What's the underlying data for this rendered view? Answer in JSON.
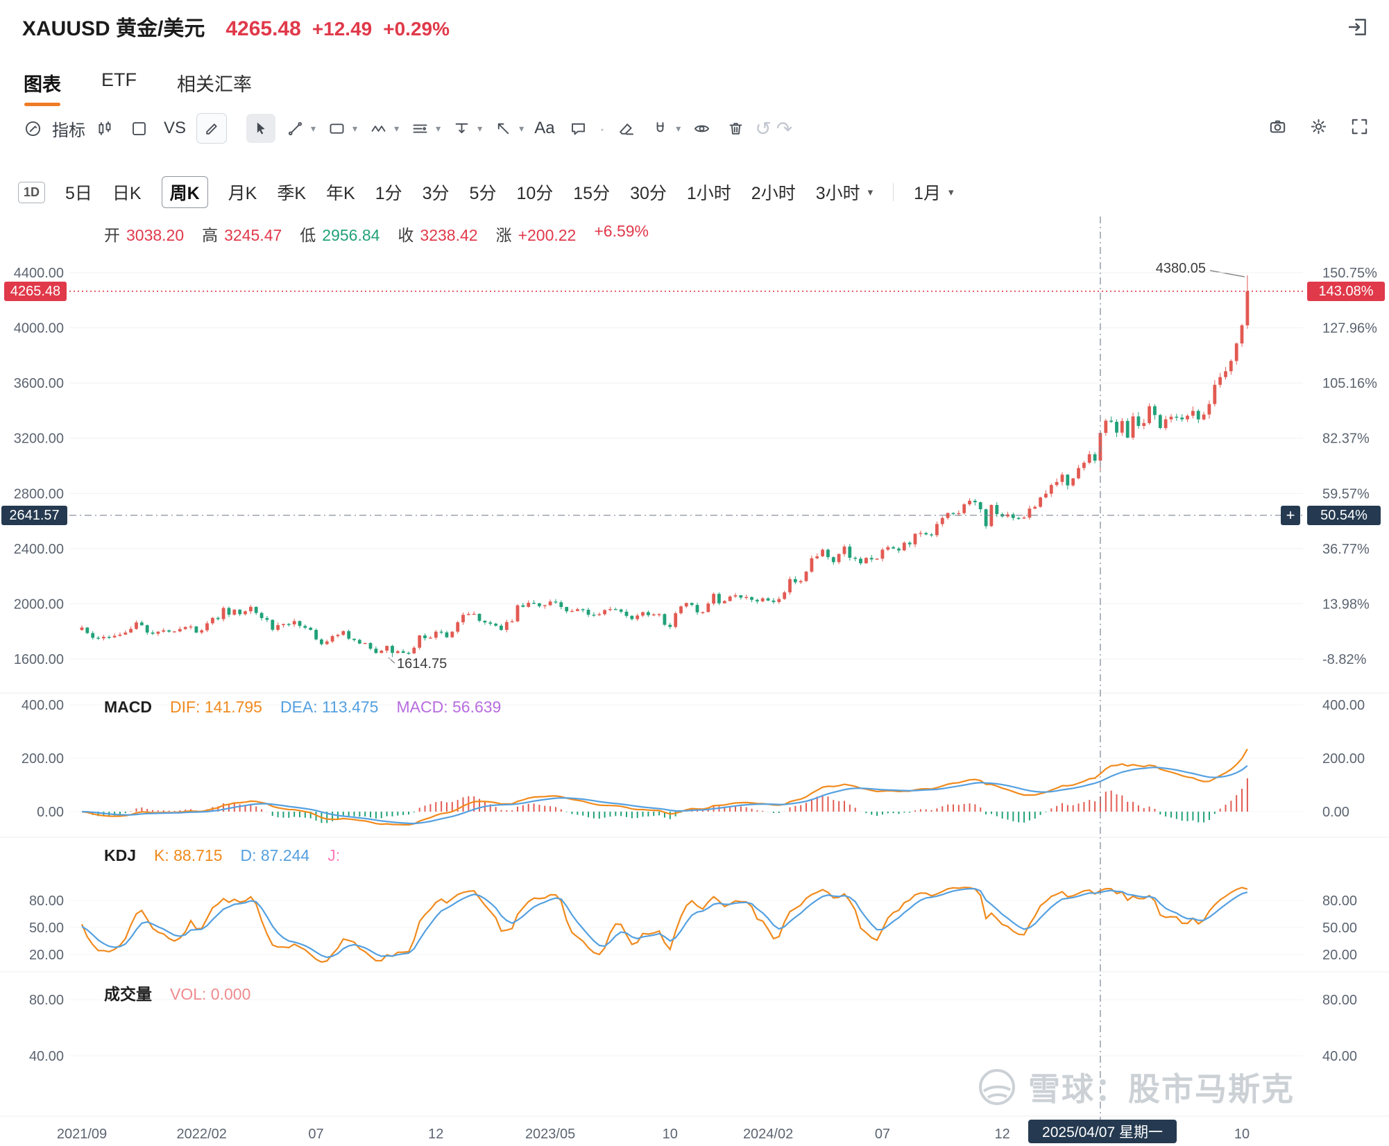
{
  "header": {
    "symbol_title": "XAUUSD 黄金/美元",
    "price": "4265.48",
    "change": "+12.49",
    "change_pct": "+0.29%"
  },
  "tabs": {
    "chart": "图表",
    "etf": "ETF",
    "related": "相关汇率"
  },
  "toolbar": {
    "indicator": "指标",
    "vs": "VS",
    "text_tool": "Aa"
  },
  "periods": {
    "range": "1D",
    "items": [
      "5日",
      "日K",
      "周K",
      "月K",
      "季K",
      "年K",
      "1分",
      "3分",
      "5分",
      "10分",
      "15分",
      "30分",
      "1小时",
      "2小时",
      "3小时",
      "1月"
    ],
    "selected": "周K"
  },
  "ohlc": {
    "o_label": "开",
    "o": "3038.20",
    "h_label": "高",
    "h": "3245.47",
    "l_label": "低",
    "l": "2956.84",
    "c_label": "收",
    "c": "3238.42",
    "chg_label": "涨",
    "chg": "+200.22",
    "chg_pct": "+6.59%"
  },
  "panels": {
    "macd": {
      "title": "MACD",
      "dif": "DIF: 141.795",
      "dea": "DEA: 113.475",
      "macd": "MACD: 56.639",
      "axis": [
        "400.00",
        "200.00",
        "0.00"
      ]
    },
    "kdj": {
      "title": "KDJ",
      "k": "K: 88.715",
      "d": "D: 87.244",
      "j": "J:",
      "axis": [
        "80.00",
        "50.00",
        "20.00"
      ]
    },
    "vol": {
      "title": "成交量",
      "vol": "VOL: 0.000",
      "axis": [
        "80.00",
        "40.00"
      ]
    }
  },
  "axes": {
    "price": [
      "4400.00",
      "4000.00",
      "3600.00",
      "3200.00",
      "2800.00",
      "2400.00",
      "2000.00",
      "1600.00"
    ],
    "pct": [
      "150.75%",
      "127.96%",
      "105.16%",
      "82.37%",
      "59.57%",
      "36.77%",
      "13.98%",
      "-8.82%"
    ],
    "x_ticks": [
      {
        "label": "2021/09",
        "i": 0
      },
      {
        "label": "2022/02",
        "i": 22
      },
      {
        "label": "07",
        "i": 43
      },
      {
        "label": "12",
        "i": 65
      },
      {
        "label": "2023/05",
        "i": 86
      },
      {
        "label": "10",
        "i": 108
      },
      {
        "label": "2024/02",
        "i": 126
      },
      {
        "label": "07",
        "i": 147
      },
      {
        "label": "12",
        "i": 169
      },
      {
        "label": "10",
        "i": 213
      }
    ]
  },
  "badges": {
    "last_price": "4265.48",
    "last_pct": "143.08%",
    "cross_price": "2641.57",
    "cross_pct": "50.54%",
    "plus": "+",
    "date": "2025/04/07 星期一"
  },
  "annotations": {
    "high": "4380.05",
    "low": "1614.75"
  },
  "watermark": "雪球：股市马斯克",
  "colors": {
    "up": "#e25a52",
    "down": "#21a179",
    "accent_red": "#e0394a",
    "accent_orange": "#ef7b24",
    "dark_badge": "#253a50",
    "dif_line": "#f08a1d",
    "dea_line": "#54a0e0",
    "macd_value": "#b76ce0",
    "j_value": "#ff7ab8",
    "vol_value": "#ef8a8e",
    "axis_text": "#5b6470",
    "grid": "#f0f1f3",
    "crosshair": "#7a8392"
  },
  "chart_data": {
    "type": "candlestick",
    "symbol": "XAUUSD",
    "name": "黄金/美元",
    "interval": "周K",
    "pct_base": 1754.74,
    "price_axis_range": [
      1600,
      4400
    ],
    "pct_axis_range": [
      -8.82,
      150.75
    ],
    "first_open": 1810,
    "closes": [
      1828,
      1788,
      1754,
      1750,
      1761,
      1757,
      1768,
      1777,
      1792,
      1818,
      1865,
      1845,
      1792,
      1783,
      1798,
      1808,
      1798,
      1800,
      1817,
      1832,
      1836,
      1792,
      1808,
      1859,
      1898,
      1889,
      1970,
      1921,
      1958,
      1925,
      1946,
      1978,
      1934,
      1897,
      1884,
      1812,
      1846,
      1854,
      1851,
      1875,
      1840,
      1827,
      1811,
      1742,
      1708,
      1727,
      1766,
      1775,
      1802,
      1747,
      1738,
      1712,
      1716,
      1675,
      1644,
      1661,
      1695,
      1644,
      1657,
      1645,
      1641,
      1682,
      1771,
      1751,
      1755,
      1798,
      1793,
      1758,
      1798,
      1866,
      1920,
      1926,
      1928,
      1877,
      1865,
      1856,
      1842,
      1811,
      1868,
      1873,
      1989,
      1978,
      2007,
      2004,
      1983,
      1990,
      2016,
      2011,
      1977,
      1946,
      1948,
      1961,
      1957,
      1921,
      1919,
      1925,
      1955,
      1962,
      1959,
      1943,
      1913,
      1889,
      1915,
      1940,
      1918,
      1923,
      1925,
      1848,
      1833,
      1932,
      1981,
      2006,
      1992,
      1938,
      1940,
      2002,
      2072,
      2004,
      2020,
      2053,
      2062,
      2045,
      2049,
      2029,
      2018,
      2040,
      2024,
      2013,
      2035,
      2083,
      2179,
      2156,
      2165,
      2233,
      2330,
      2344,
      2392,
      2338,
      2302,
      2361,
      2415,
      2334,
      2327,
      2294,
      2333,
      2322,
      2327,
      2392,
      2411,
      2401,
      2387,
      2443,
      2431,
      2508,
      2513,
      2503,
      2497,
      2578,
      2622,
      2658,
      2654,
      2657,
      2721,
      2747,
      2736,
      2685,
      2563,
      2716,
      2650,
      2633,
      2648,
      2622,
      2621,
      2625,
      2690,
      2703,
      2771,
      2798,
      2861,
      2883,
      2936,
      2858,
      2909,
      2984,
      3022,
      3084,
      3038,
      3238.42,
      3327,
      3319,
      3240,
      3325,
      3204,
      3358,
      3289,
      3310,
      3432,
      3368,
      3274,
      3337,
      3356,
      3350,
      3337,
      3363,
      3398,
      3336,
      3372,
      3448,
      3587,
      3643,
      3685,
      3760,
      3887,
      4018,
      4265.48
    ],
    "special": {
      "crosshair_index": 187,
      "crosshair_date": "2025/04/07 星期一",
      "crosshair_ohlc": {
        "open": 3038.2,
        "high": 3245.47,
        "low": 2956.84,
        "close": 3238.42
      },
      "min_low": {
        "index": 57,
        "value": 1614.75
      },
      "max_high": {
        "index": 214,
        "value": 4380.05
      },
      "last_close": 4265.48,
      "crosshair_price": 2641.57
    },
    "indicators": {
      "macd": {
        "dif": 141.795,
        "dea": 113.475,
        "macd": 56.639
      },
      "kdj": {
        "k": 88.715,
        "d": 87.244
      },
      "vol": 0.0
    }
  }
}
